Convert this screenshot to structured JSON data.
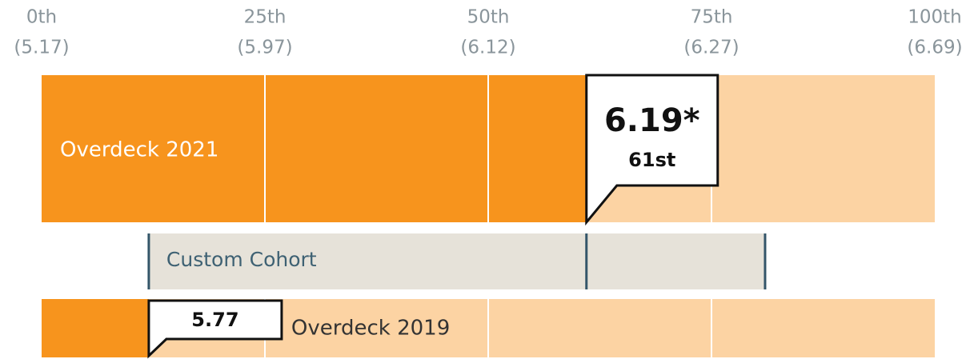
{
  "chart_data": {
    "type": "percentile",
    "xlim": [
      0,
      100
    ],
    "xticks": [
      {
        "value": 0,
        "label": "0th",
        "score": "(5.17)"
      },
      {
        "value": 25,
        "label": "25th",
        "score": "(5.97)"
      },
      {
        "value": 50,
        "label": "50th",
        "score": "(6.12)"
      },
      {
        "value": 75,
        "label": "75th",
        "score": "(6.27)"
      },
      {
        "value": 100,
        "label": "100th",
        "score": "(6.69)"
      }
    ],
    "rows": [
      {
        "name": "Overdeck 2021",
        "value": 61,
        "value_label": "61st",
        "score_label": "6.19*"
      },
      {
        "name": "Overdeck 2019",
        "value": 12,
        "score_label": "5.77"
      }
    ],
    "cohort": {
      "name": "Custom Cohort",
      "range": [
        12,
        81
      ],
      "marker": 61
    },
    "colors": {
      "filled": "#f7941d",
      "empty": "#fcd3a3",
      "cohort_fill": "#e6e2d9",
      "cohort_line": "#34566a"
    }
  }
}
